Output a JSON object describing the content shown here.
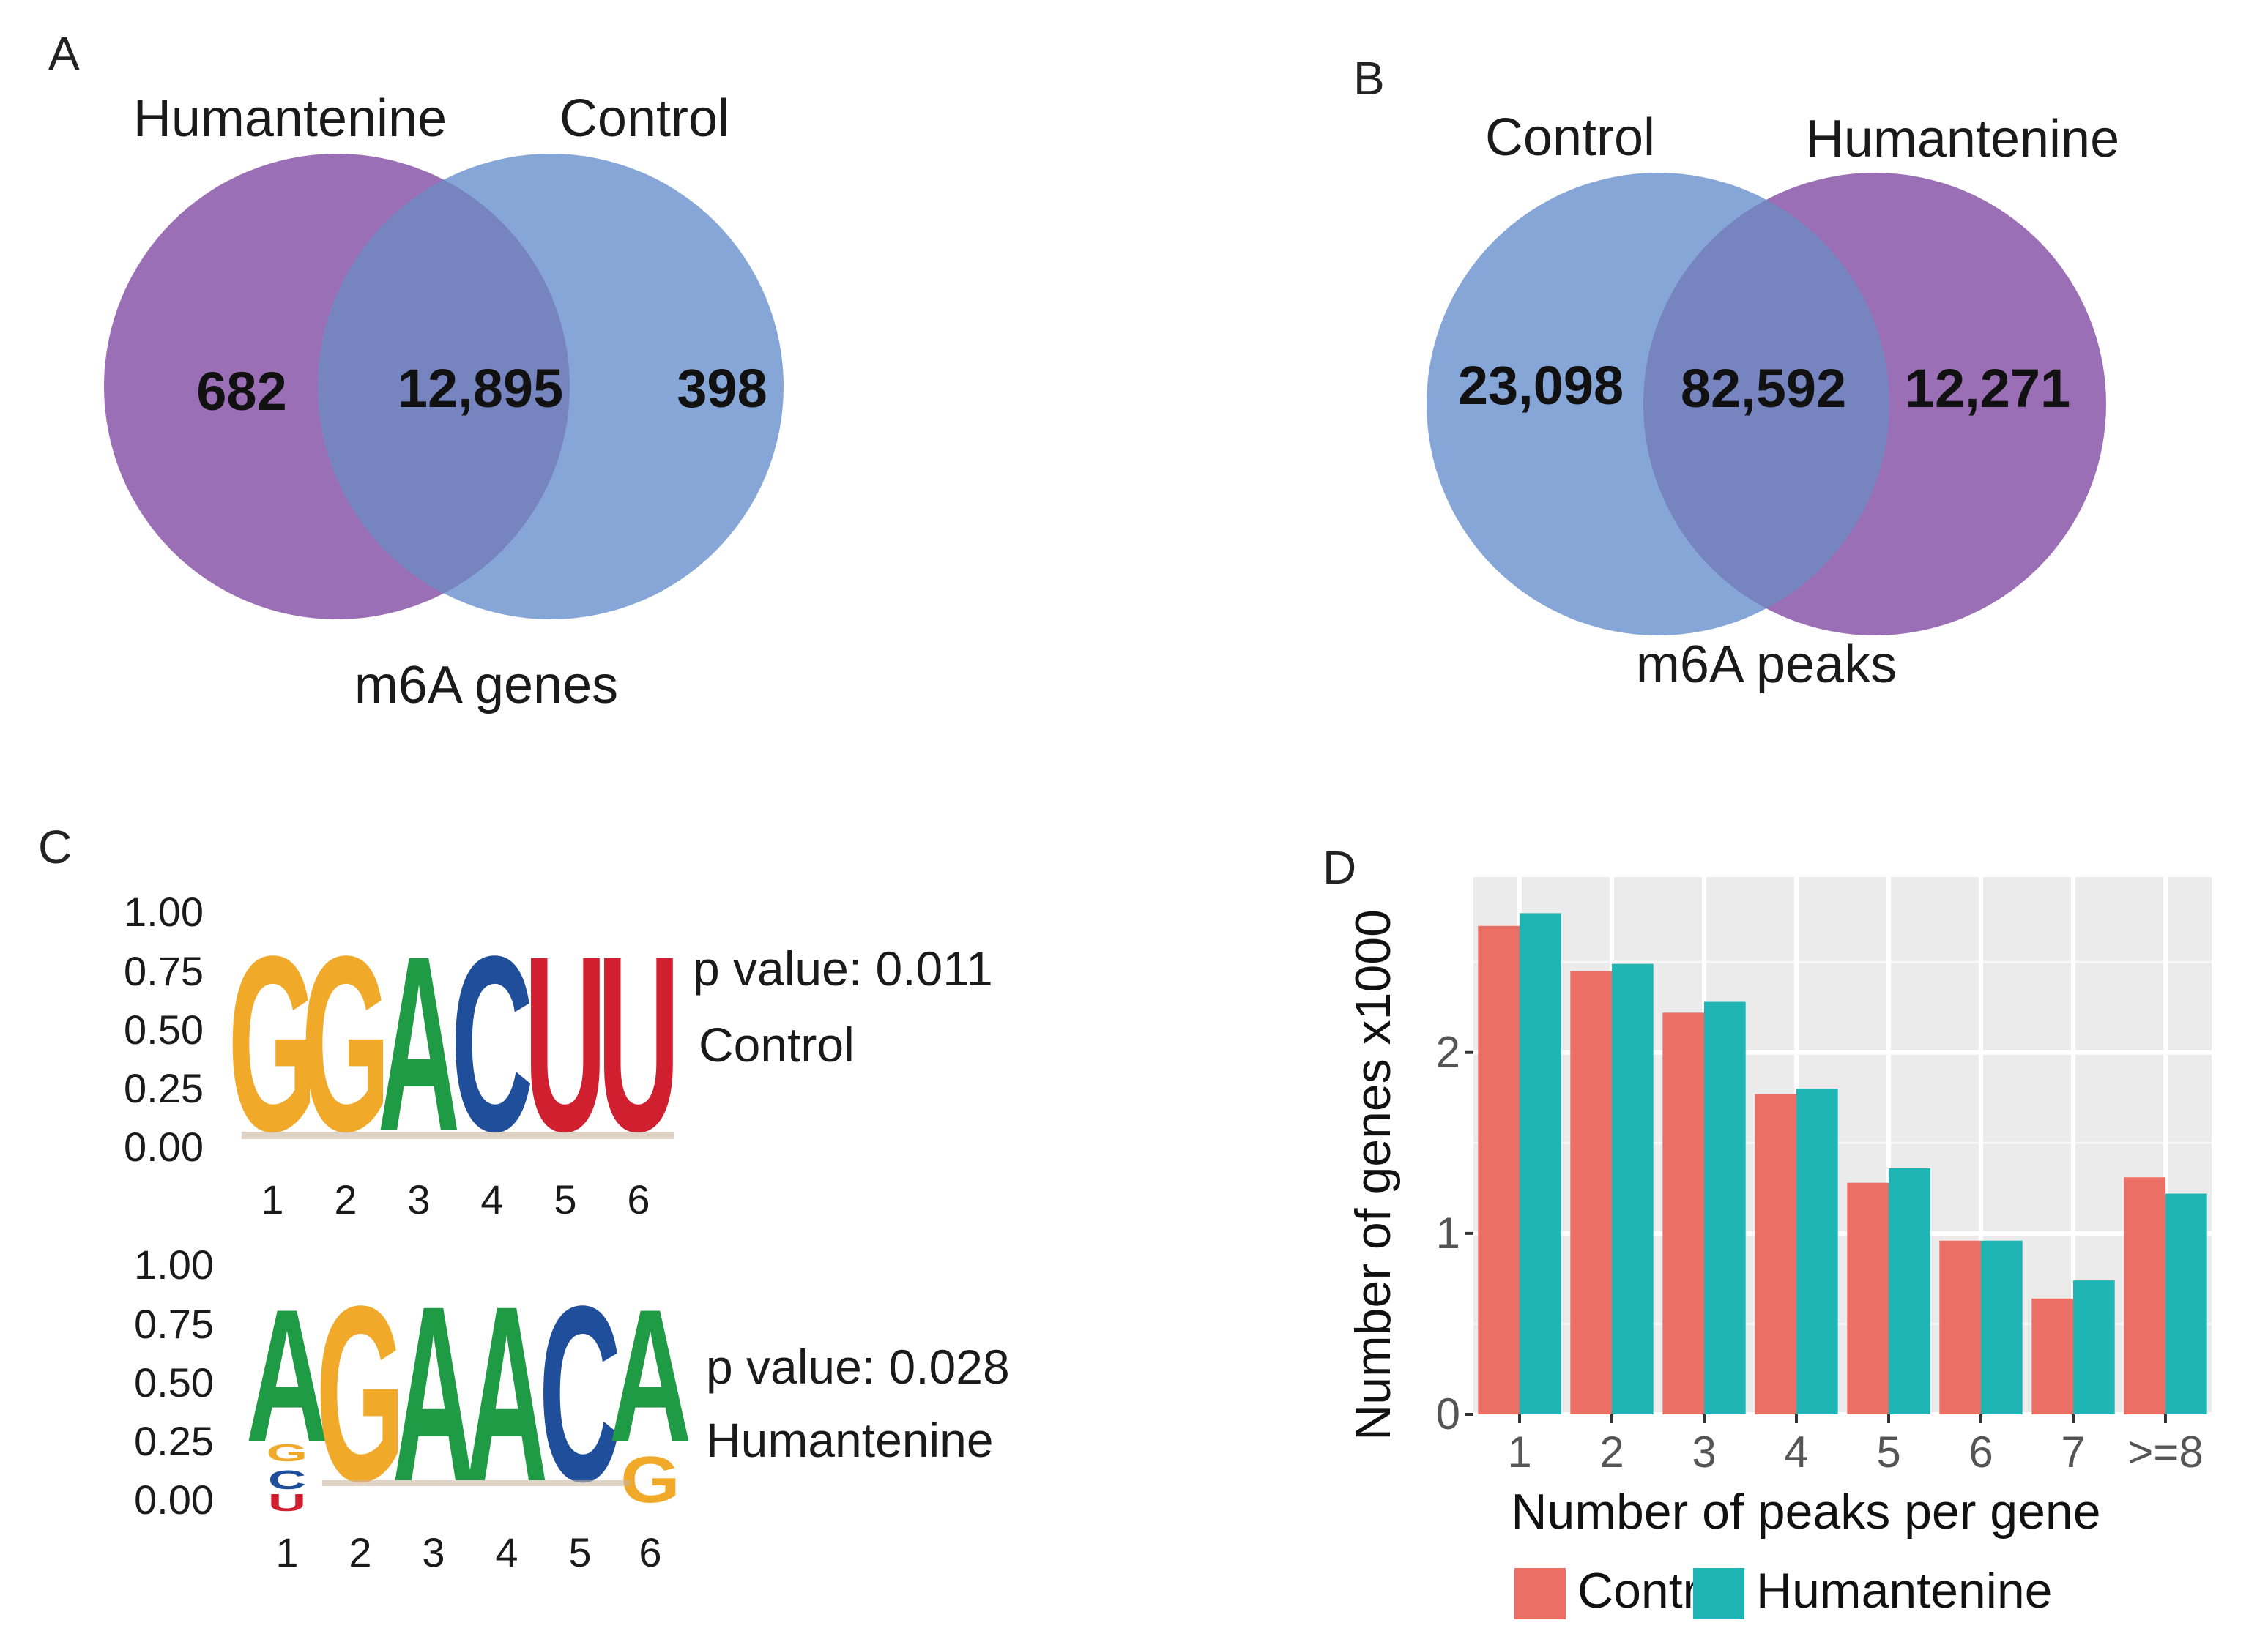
{
  "panels": {
    "a": {
      "label": "A",
      "set_left": "Humantenine",
      "set_right": "Control",
      "only_left": "682",
      "overlap": "12,895",
      "only_right": "398",
      "caption": "m6A genes",
      "color_left": "#9b6fb5",
      "color_right": "#86a6d8"
    },
    "b": {
      "label": "B",
      "set_left": "Control",
      "set_right": "Humantenine",
      "only_left": "23,098",
      "overlap": "82,592",
      "only_right": "12,271",
      "caption": "m6A peaks",
      "color_left": "#86a6d8",
      "color_right": "#9b6fb5"
    },
    "c": {
      "label": "C",
      "yticks": [
        "1.00",
        "0.75",
        "0.50",
        "0.25",
        "0.00"
      ],
      "motifs": [
        {
          "name": "Control",
          "pvalue": "p value: 0.011",
          "positions": [
            "1",
            "2",
            "3",
            "4",
            "5",
            "6"
          ],
          "sequence": [
            "G",
            "G",
            "A",
            "C",
            "U",
            "U"
          ]
        },
        {
          "name": "Humantenine",
          "pvalue": "p value: 0.028",
          "positions": [
            "1",
            "2",
            "3",
            "4",
            "5",
            "6"
          ],
          "sequence": [
            "A",
            "G",
            "A",
            "A",
            "C",
            "A"
          ],
          "minor_letters": [
            "G",
            "C",
            "U",
            "G"
          ]
        }
      ],
      "letter_colors": {
        "A": "#1f9a45",
        "C": "#1f4e9a",
        "G": "#f0a928",
        "U": "#d0202f"
      }
    },
    "d": {
      "label": "D"
    }
  },
  "chart_data": {
    "type": "bar",
    "categories": [
      "1",
      "2",
      "3",
      "4",
      "5",
      "6",
      "7",
      ">=8"
    ],
    "series": [
      {
        "name": "Control",
        "color": "#ec6f66",
        "values": [
          2.7,
          2.45,
          2.22,
          1.77,
          1.28,
          0.96,
          0.64,
          1.31
        ]
      },
      {
        "name": "Humantenine",
        "color": "#20b5b5",
        "values": [
          2.77,
          2.49,
          2.28,
          1.8,
          1.36,
          0.96,
          0.74,
          1.22
        ]
      }
    ],
    "xlabel": "Number of peaks per gene",
    "ylabel": "Number of genes x1000",
    "yticks": [
      "0",
      "1",
      "2"
    ],
    "ylim": [
      0,
      2.97
    ],
    "grid": true,
    "legend": "bottom"
  }
}
